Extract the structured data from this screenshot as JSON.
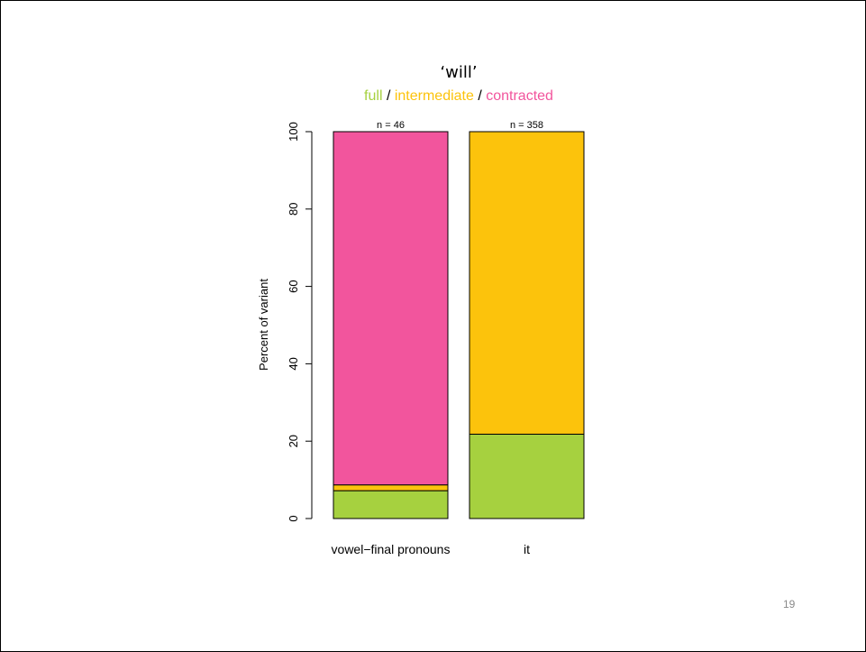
{
  "slide": {
    "page_number": "19"
  },
  "chart_data": {
    "type": "bar",
    "stacked": true,
    "title": "‘will’",
    "subtitle_parts": [
      {
        "text": "full",
        "color": "#a6d13f"
      },
      {
        "text": " / ",
        "color": "#000000"
      },
      {
        "text": "intermediate",
        "color": "#fcc30c"
      },
      {
        "text": " / ",
        "color": "#000000"
      },
      {
        "text": "contracted",
        "color": "#f2559d"
      }
    ],
    "ylabel": "Percent of variant",
    "xlabel": "",
    "ylim": [
      0,
      100
    ],
    "yticks": [
      0,
      20,
      40,
      60,
      80,
      100
    ],
    "categories": [
      "vowel−final pronouns",
      "it"
    ],
    "counts": [
      "n = 46",
      "n = 358"
    ],
    "series": [
      {
        "name": "full",
        "color": "#a6d13f",
        "values": [
          7.2,
          21.8
        ]
      },
      {
        "name": "intermediate",
        "color": "#fcc30c",
        "values": [
          1.5,
          78.2
        ]
      },
      {
        "name": "contracted",
        "color": "#f2559d",
        "values": [
          91.3,
          0
        ]
      }
    ],
    "grid": false,
    "legend": "none"
  }
}
